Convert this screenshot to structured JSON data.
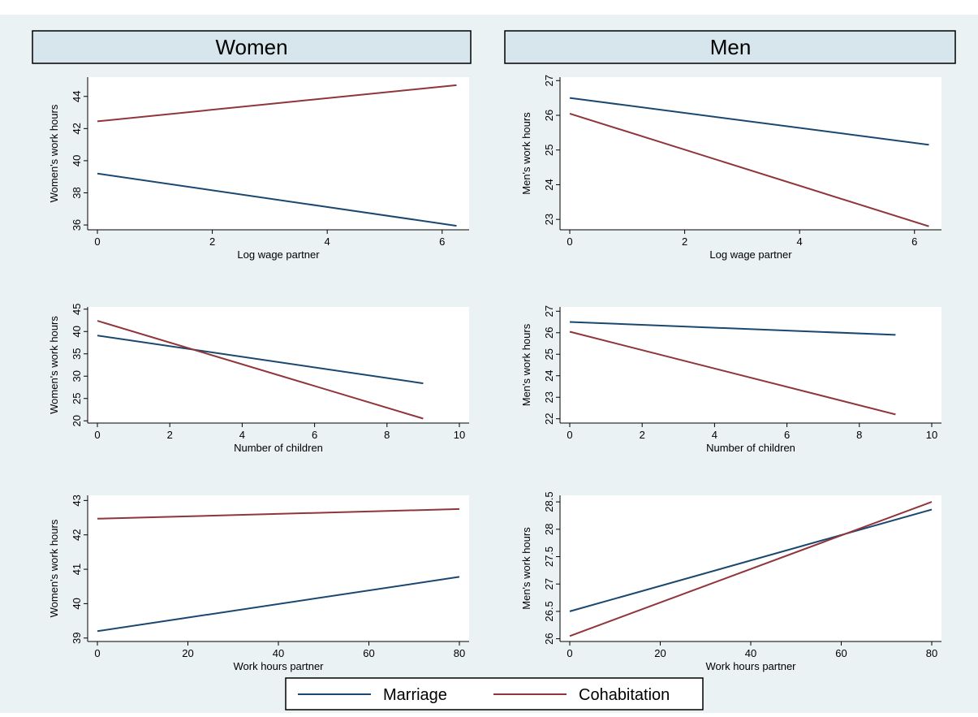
{
  "colors": {
    "background": "#eaf2f3",
    "plot_background": "#ffffff",
    "header_fill": "#d7e5ed",
    "marriage": "#1a476f",
    "cohabitation": "#90353b",
    "axis": "#000000"
  },
  "columns": [
    {
      "label": "Women"
    },
    {
      "label": "Men"
    }
  ],
  "legend": {
    "items": [
      {
        "label": "Marriage",
        "color": "#1a476f"
      },
      {
        "label": "Cohabitation",
        "color": "#90353b"
      }
    ]
  },
  "chart_data": [
    {
      "type": "line",
      "column": "Women",
      "row": 1,
      "xlabel": "Log wage partner",
      "ylabel": "Women's work hours",
      "xlim": [
        0,
        6.3
      ],
      "ylim": [
        35.7,
        45.2
      ],
      "xticks": [
        0,
        2,
        4,
        6
      ],
      "yticks": [
        36,
        38,
        40,
        42,
        44
      ],
      "grid": false,
      "series": [
        {
          "name": "Marriage",
          "x": [
            0,
            6.25
          ],
          "y": [
            39.2,
            35.95
          ]
        },
        {
          "name": "Cohabitation",
          "x": [
            0,
            6.25
          ],
          "y": [
            42.45,
            44.7
          ]
        }
      ]
    },
    {
      "type": "line",
      "column": "Men",
      "row": 1,
      "xlabel": "Log wage partner",
      "ylabel": "Men's work hours",
      "xlim": [
        0,
        6.3
      ],
      "ylim": [
        22.7,
        27.1
      ],
      "xticks": [
        0,
        2,
        4,
        6
      ],
      "yticks": [
        23,
        24,
        25,
        26,
        27
      ],
      "grid": false,
      "series": [
        {
          "name": "Marriage",
          "x": [
            0,
            6.25
          ],
          "y": [
            26.5,
            25.15
          ]
        },
        {
          "name": "Cohabitation",
          "x": [
            0,
            6.25
          ],
          "y": [
            26.05,
            22.8
          ]
        }
      ]
    },
    {
      "type": "line",
      "column": "Women",
      "row": 2,
      "xlabel": "Number of children",
      "ylabel": "Women's work hours",
      "xlim": [
        0,
        10
      ],
      "ylim": [
        19.5,
        45.5
      ],
      "xticks": [
        0,
        2,
        4,
        6,
        8,
        10
      ],
      "yticks": [
        20,
        25,
        30,
        35,
        40,
        45
      ],
      "grid": false,
      "series": [
        {
          "name": "Marriage",
          "x": [
            0,
            9
          ],
          "y": [
            39.1,
            28.4
          ]
        },
        {
          "name": "Cohabitation",
          "x": [
            0,
            9
          ],
          "y": [
            42.4,
            20.5
          ]
        }
      ]
    },
    {
      "type": "line",
      "column": "Men",
      "row": 2,
      "xlabel": "Number of children",
      "ylabel": "Men's work hours",
      "xlim": [
        0,
        10
      ],
      "ylim": [
        21.8,
        27.2
      ],
      "xticks": [
        0,
        2,
        4,
        6,
        8,
        10
      ],
      "yticks": [
        22,
        23,
        24,
        25,
        26,
        27
      ],
      "grid": false,
      "series": [
        {
          "name": "Marriage",
          "x": [
            0,
            9
          ],
          "y": [
            26.5,
            25.9
          ]
        },
        {
          "name": "Cohabitation",
          "x": [
            0,
            9
          ],
          "y": [
            26.05,
            22.2
          ]
        }
      ]
    },
    {
      "type": "line",
      "column": "Women",
      "row": 3,
      "xlabel": "Work hours partner",
      "ylabel": "Women's work hours",
      "xlim": [
        0,
        80
      ],
      "ylim": [
        38.9,
        43.15
      ],
      "xticks": [
        0,
        20,
        40,
        60,
        80
      ],
      "yticks": [
        39,
        40,
        41,
        42,
        43
      ],
      "grid": false,
      "series": [
        {
          "name": "Marriage",
          "x": [
            0,
            80
          ],
          "y": [
            39.2,
            40.78
          ]
        },
        {
          "name": "Cohabitation",
          "x": [
            0,
            80
          ],
          "y": [
            42.47,
            42.75
          ]
        }
      ]
    },
    {
      "type": "line",
      "column": "Men",
      "row": 3,
      "xlabel": "Work hours partner",
      "ylabel": "Men's work hours",
      "xlim": [
        0,
        80
      ],
      "ylim": [
        25.95,
        28.62
      ],
      "xticks": [
        0,
        20,
        40,
        60,
        80
      ],
      "yticks": [
        26,
        26.5,
        27,
        27.5,
        28,
        28.5
      ],
      "grid": false,
      "series": [
        {
          "name": "Marriage",
          "x": [
            0,
            80
          ],
          "y": [
            26.5,
            28.36
          ]
        },
        {
          "name": "Cohabitation",
          "x": [
            0,
            80
          ],
          "y": [
            26.05,
            28.5
          ]
        }
      ]
    }
  ]
}
